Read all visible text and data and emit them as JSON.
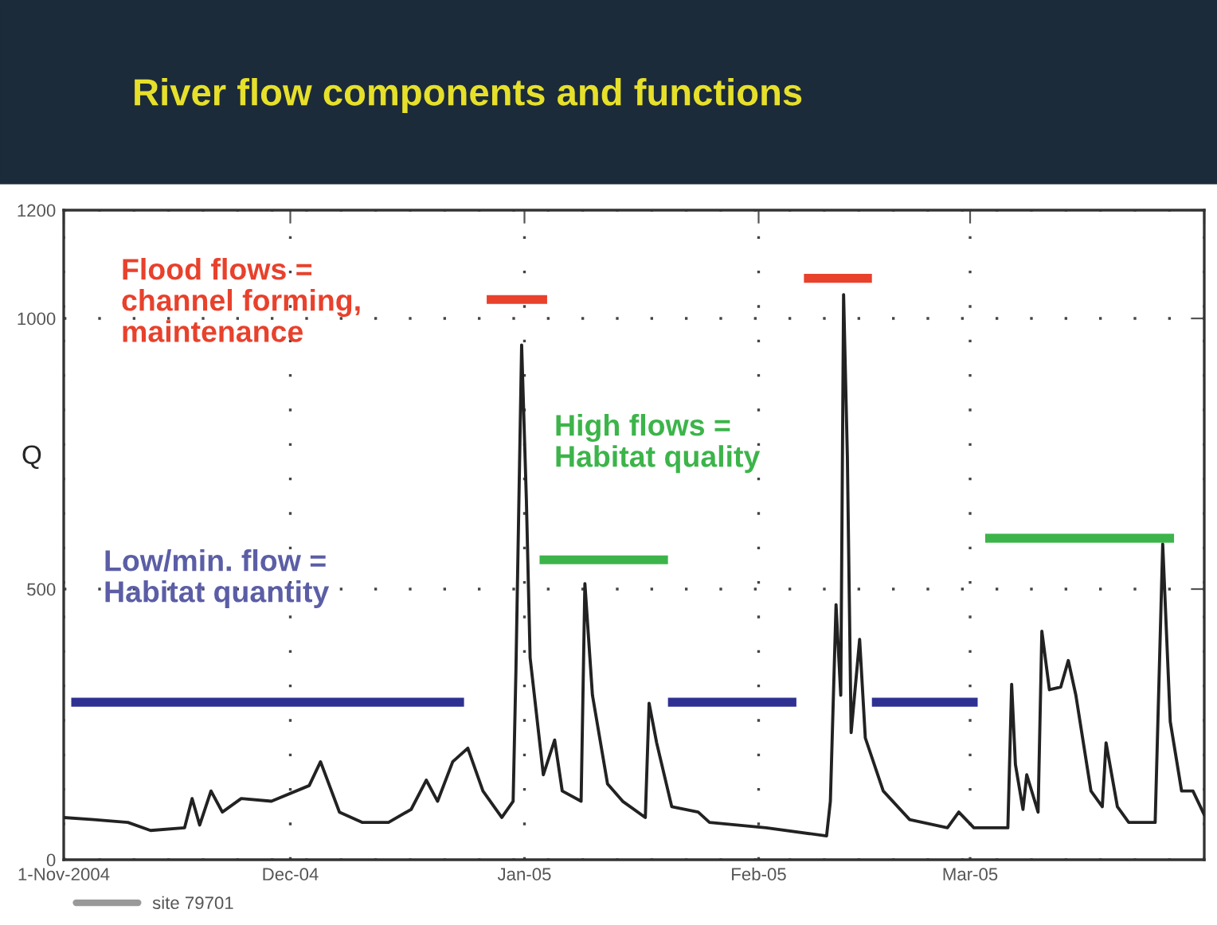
{
  "chart_data": {
    "type": "line",
    "title": "River flow components and functions",
    "ylabel": "Q",
    "xlim": [
      "2004-11-01",
      "2005-04-01"
    ],
    "xticks": [
      {
        "value": "2004-11-01",
        "label": "1-Nov-2004"
      },
      {
        "value": "2004-12-01",
        "label": "Dec-04"
      },
      {
        "value": "2005-01-01",
        "label": "Jan-05"
      },
      {
        "value": "2005-02-01",
        "label": "Feb-05"
      },
      {
        "value": "2005-03-01",
        "label": "Mar-05"
      },
      {
        "value": "2005-04-01",
        "label": null
      }
    ],
    "ylim": [
      0,
      1200
    ],
    "yticks": [
      0,
      500,
      1000,
      1200
    ],
    "grid": true,
    "legend": "bottom left",
    "annotations": [
      "Flood flows =\nchannel forming,\nmaintenance",
      "High flows =\nHabitat quality",
      "Low/min. flow =\nHabitat quantity"
    ],
    "series": [
      {
        "name": "site 79701",
        "color": "#222222",
        "x": [
          "2004-11-01",
          "2004-11-05",
          "2004-11-09T12:00",
          "2004-11-12T12:00",
          "2004-11-17",
          "2004-11-18",
          "2004-11-19",
          "2004-11-20T12:00",
          "2004-11-22",
          "2004-11-24T12:00",
          "2004-11-28T12:00",
          "2004-12-03T12:00",
          "2004-12-05",
          "2004-12-07T12:00",
          "2004-12-10T12:00",
          "2004-12-14",
          "2004-12-17",
          "2004-12-19",
          "2004-12-20T12:00",
          "2004-12-22T12:00",
          "2004-12-24T12:00",
          "2004-12-26T12:00",
          "2004-12-29",
          "2004-12-30T12:00",
          "2004-12-30T21:00",
          "2004-12-31T15:00",
          "2005-01-01T06:00",
          "2005-01-01T18:00",
          "2005-01-03T12:00",
          "2005-01-05",
          "2005-01-06",
          "2005-01-08T12:00",
          "2005-01-09",
          "2005-01-10",
          "2005-01-12",
          "2005-01-14",
          "2005-01-17",
          "2005-01-17T12:00",
          "2005-01-18T12:00",
          "2005-01-20T12:00",
          "2005-01-24",
          "2005-01-25T12:00",
          "2005-02-02",
          "2005-02-10",
          "2005-02-10T12:00",
          "2005-02-11T06:00",
          "2005-02-11T21:00",
          "2005-02-12T06:00",
          "2005-02-12T18:00",
          "2005-02-13T06:00",
          "2005-02-14T09:00",
          "2005-02-15T03:00",
          "2005-02-17T12:00",
          "2005-02-21",
          "2005-02-26",
          "2005-02-27T12:00",
          "2005-03-01T12:00",
          "2005-03-06",
          "2005-03-06T12:00",
          "2005-03-07",
          "2005-03-08",
          "2005-03-08T12:00",
          "2005-03-10",
          "2005-03-10T12:00",
          "2005-03-11T12:00",
          "2005-03-13",
          "2005-03-14",
          "2005-03-15",
          "2005-03-17",
          "2005-03-18T12:00",
          "2005-03-19",
          "2005-03-20T12:00",
          "2005-03-22",
          "2005-03-25T12:00",
          "2005-03-26T12:00",
          "2005-03-27T12:00",
          "2005-03-29",
          "2005-03-30T12:00",
          "2005-04-01"
        ],
        "values": [
          78,
          74,
          69,
          54,
          59,
          113,
          64,
          127,
          88,
          113,
          108,
          137,
          181,
          88,
          69,
          69,
          93,
          147,
          108,
          181,
          206,
          127,
          78,
          108,
          353,
          951,
          667,
          373,
          157,
          221,
          127,
          108,
          510,
          304,
          140,
          108,
          78,
          289,
          216,
          98,
          88,
          69,
          59,
          44,
          108,
          471,
          304,
          1044,
          745,
          235,
          407,
          225,
          127,
          74,
          59,
          88,
          59,
          59,
          324,
          176,
          93,
          157,
          88,
          422,
          314,
          319,
          368,
          304,
          127,
          98,
          216,
          98,
          69,
          69,
          583,
          255,
          127,
          127,
          83
        ]
      },
      {
        "color": "#e8412c",
        "x": [
          "2004-12-27",
          "2005-01-04"
        ],
        "values": [
          1035,
          1035
        ]
      },
      {
        "color": "#e8412c",
        "x": [
          "2005-02-07",
          "2005-02-16"
        ],
        "values": [
          1074,
          1074
        ]
      },
      {
        "color": "#3cb44a",
        "x": [
          "2005-01-03",
          "2005-01-20"
        ],
        "values": [
          554,
          554
        ]
      },
      {
        "color": "#3cb44a",
        "x": [
          "2005-03-03",
          "2005-03-28"
        ],
        "values": [
          594,
          594
        ]
      },
      {
        "color": "#2e3192",
        "x": [
          "2004-11-02",
          "2004-12-24"
        ],
        "values": [
          291,
          291
        ]
      },
      {
        "color": "#2e3192",
        "x": [
          "2005-01-20",
          "2005-02-06"
        ],
        "values": [
          291,
          291
        ]
      },
      {
        "color": "#2e3192",
        "x": [
          "2005-02-16",
          "2005-03-02"
        ],
        "values": [
          291,
          291
        ]
      }
    ]
  }
}
